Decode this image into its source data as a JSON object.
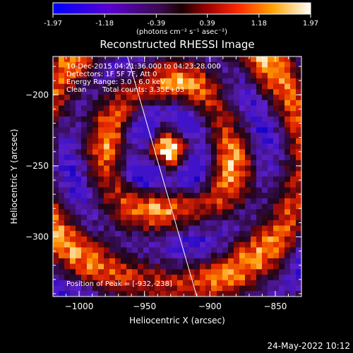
{
  "colorbar": {
    "ticks": [
      "-1.97",
      "-1.18",
      "-0.39",
      "0.39",
      "1.18",
      "1.97"
    ],
    "units_label": "(photons cm⁻² s⁻¹ asec⁻²)",
    "range": [
      -1.97,
      1.97
    ]
  },
  "chart_data": {
    "type": "heatmap",
    "title": "Reconstructed RHESSI Image",
    "xlabel": "Heliocentric X (arcsec)",
    "ylabel": "Heliocentric Y (arcsec)",
    "xlim": [
      -1020,
      -830
    ],
    "ylim": [
      -342,
      -173
    ],
    "x_ticks": [
      -1000,
      -950,
      -900,
      -850
    ],
    "y_ticks": [
      -200,
      -250,
      -300
    ],
    "x_tick_labels": [
      "−1000",
      "−950",
      "−900",
      "−850"
    ],
    "y_tick_labels": [
      "−200",
      "−250",
      "−300"
    ],
    "annotations": [
      "10-Dec-2015 04:21:36.000 to 04:23:28.000",
      "Detectors: 1F 5F 7F, Att 0",
      "Energy Range: 3.0 - 6.0 keV",
      "Clean",
      "Total counts: 3.35E+03"
    ],
    "peak_label": "Position of Peak = [-932,-238]",
    "peak": [
      -932,
      -238
    ],
    "limb_line": [
      [
        -963,
        -173
      ],
      [
        -910,
        -342
      ]
    ],
    "grid": false
  },
  "footer": {
    "timestamp": "24-May-2022 10:12"
  }
}
